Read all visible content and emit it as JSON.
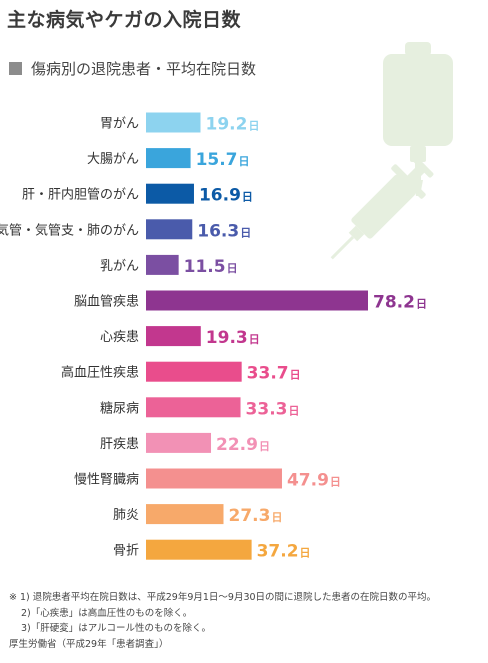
{
  "title": "主な病気やケガの入院日数",
  "subtitle": "傷病別の退院患者・平均在院日数",
  "unit": "日",
  "chart_data": {
    "type": "bar",
    "orientation": "horizontal",
    "categories": [
      "胃がん",
      "大腸がん",
      "肝・肝内胆管のがん",
      "気管・気管支・肺のがん",
      "乳がん",
      "脳血管疾患",
      "心疾患",
      "高血圧性疾患",
      "糖尿病",
      "肝疾患",
      "慢性腎臓病",
      "肺炎",
      "骨折"
    ],
    "values": [
      19.2,
      15.7,
      16.9,
      16.3,
      11.5,
      78.2,
      19.3,
      33.7,
      33.3,
      22.9,
      47.9,
      27.3,
      37.2
    ],
    "value_labels": [
      "19.2",
      "15.7",
      "16.9",
      "16.3",
      "11.5",
      "78.2",
      "19.3",
      "33.7",
      "33.3",
      "22.9",
      "47.9",
      "27.3",
      "37.2"
    ],
    "colors": [
      "#8dd3ef",
      "#3aa5dc",
      "#0c5aa6",
      "#4a5bab",
      "#7b4fa2",
      "#8e3590",
      "#c2378e",
      "#e94d8c",
      "#ec6297",
      "#f291b5",
      "#f4908f",
      "#f7a96a",
      "#f4a73f"
    ],
    "label_colors": [
      "#8dd3ef",
      "#3aa5dc",
      "#0c5aa6",
      "#4a5bab",
      "#7b4fa2",
      "#8e3590",
      "#c2378e",
      "#e94d8c",
      "#ec6297",
      "#f291b5",
      "#f4908f",
      "#f7a96a",
      "#f4a73f"
    ],
    "xlim": [
      0,
      78.2
    ],
    "grid": false,
    "legend": "none"
  },
  "notes": [
    "※ 1) 退院患者平均在院日数は、平成29年9月1日～9月30日の間に退院した患者の在院日数の平均。",
    "2)「心疾患」は高血圧性のものを除く。",
    "3)「肝硬変」はアルコール性のものを除く。",
    "厚生労働省（平成29年「患者調査」）"
  ],
  "icons": {
    "iv_bag": "iv-drip-bag-icon",
    "syringe": "syringe-icon"
  },
  "decor_color": "#e6efdf"
}
